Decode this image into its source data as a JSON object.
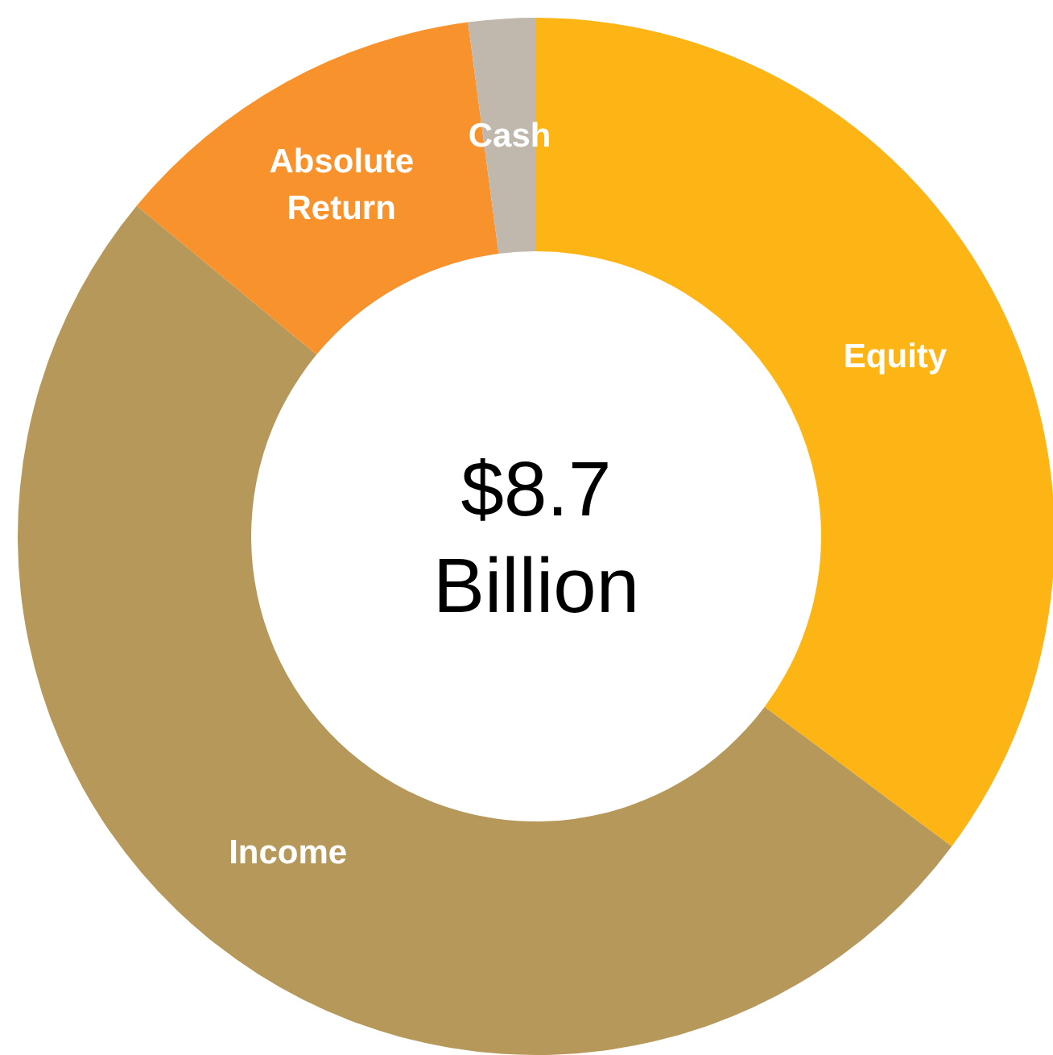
{
  "chart_data": {
    "type": "donut",
    "categories": [
      "Equity",
      "Income",
      "Absolute Return",
      "Cash"
    ],
    "values": [
      35.2,
      50.8,
      11.9,
      2.1
    ],
    "colors": [
      "#fdb515",
      "#b5985a",
      "#f7922c",
      "#c0b7ad"
    ],
    "annotations": [
      "$8.7 Billion"
    ],
    "legend": false
  }
}
